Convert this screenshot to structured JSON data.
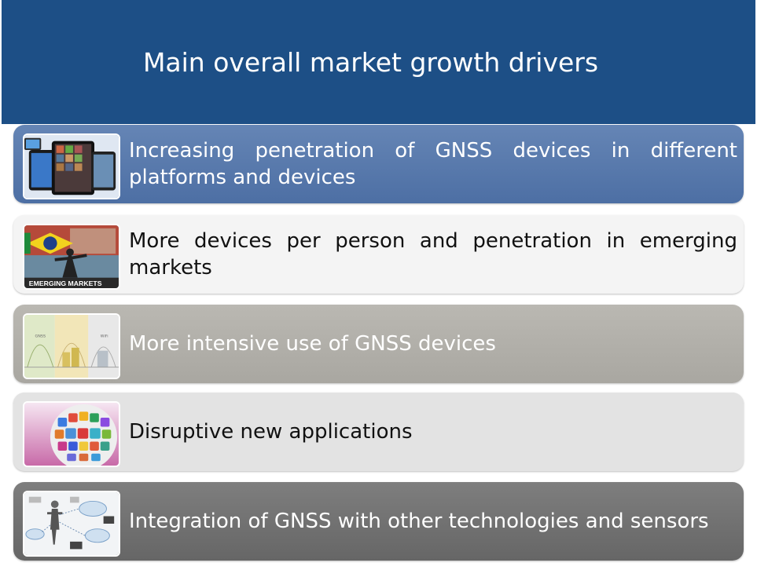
{
  "header": {
    "title": "Main overall market growth drivers"
  },
  "drivers": [
    {
      "text": "Increasing penetration of GNSS devices in different platforms and devices",
      "image": "tablets-devices"
    },
    {
      "text": "More devices per person and penetration in emerging markets",
      "image": "emerging-markets",
      "image_caption": "EMERGING MARKETS"
    },
    {
      "text": "More intensive use of GNSS devices",
      "image": "usage-chart",
      "image_labels": [
        "GNSS",
        "WiFi"
      ]
    },
    {
      "text": "Disruptive new applications",
      "image": "app-globe"
    },
    {
      "text": "Integration of GNSS with other technologies and sensors",
      "image": "sensor-network"
    }
  ],
  "colors": {
    "header": "#1d4f86",
    "row1": "#5a7aae",
    "row2": "#f4f4f4",
    "row3": "#b2b0aa",
    "row4": "#e3e3e3",
    "row5": "#727272"
  }
}
